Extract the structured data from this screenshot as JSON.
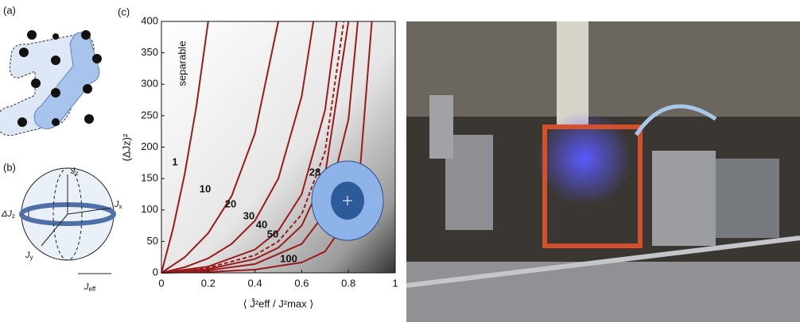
{
  "panel_labels": [
    "(a)",
    "(b)"
  ],
  "sphere": {
    "jz": {
      "base": "J",
      "sub": "z"
    },
    "jx": {
      "base": "J",
      "sub": "x"
    },
    "jy": {
      "base": "J",
      "sub": "y"
    },
    "djz": {
      "base": "ΔJ",
      "sub": "z"
    },
    "jeff": {
      "base": "J",
      "sub": "eff"
    }
  },
  "chart_data": {
    "type": "line",
    "panel_label": "(c)",
    "annotation": "separable",
    "x_label": "⟨ Ĵ²eff / J²max ⟩",
    "y_label": "(ΔJz)²",
    "xlim": [
      0,
      1
    ],
    "ylim": [
      0,
      400
    ],
    "xticks": [
      0,
      0.2,
      0.4,
      0.6,
      0.8,
      1
    ],
    "yticks": [
      0,
      50,
      100,
      150,
      200,
      250,
      300,
      350,
      400
    ],
    "series": [
      {
        "name": "1",
        "color": "#9b1b1b",
        "x": [
          0,
          0.05,
          0.1,
          0.15,
          0.2
        ],
        "values": [
          0,
          71,
          158,
          266,
          400
        ]
      },
      {
        "name": "10",
        "color": "#9b1b1b",
        "x": [
          0,
          0.1,
          0.2,
          0.3,
          0.4,
          0.5
        ],
        "values": [
          0,
          25,
          63,
          122,
          222,
          400
        ]
      },
      {
        "name": "20",
        "color": "#9b1b1b",
        "x": [
          0,
          0.1,
          0.2,
          0.3,
          0.4,
          0.5,
          0.6,
          0.65
        ],
        "values": [
          0,
          9,
          23,
          46,
          83,
          150,
          281,
          400
        ]
      },
      {
        "name": "30",
        "color": "#9b1b1b",
        "x": [
          0,
          0.2,
          0.4,
          0.5,
          0.6,
          0.7,
          0.75
        ],
        "values": [
          0,
          10,
          37,
          67,
          125,
          259,
          400
        ]
      },
      {
        "name": "28",
        "color": "#9b1b1b",
        "dashed": true,
        "x": [
          0,
          0.2,
          0.4,
          0.5,
          0.6,
          0.7,
          0.78
        ],
        "values": [
          0,
          8,
          28,
          50,
          93,
          193,
          400
        ]
      },
      {
        "name": "40",
        "color": "#9b1b1b",
        "x": [
          0,
          0.2,
          0.4,
          0.5,
          0.6,
          0.7,
          0.8
        ],
        "values": [
          0,
          6,
          22,
          40,
          75,
          156,
          400
        ]
      },
      {
        "name": "50",
        "color": "#9b1b1b",
        "x": [
          0,
          0.2,
          0.4,
          0.6,
          0.7,
          0.8,
          0.84
        ],
        "values": [
          0,
          4,
          14,
          46,
          95,
          244,
          400
        ]
      },
      {
        "name": "100",
        "color": "#9b1b1b",
        "x": [
          0,
          0.2,
          0.4,
          0.6,
          0.7,
          0.8,
          0.85,
          0.9
        ],
        "values": [
          0,
          1.4,
          5,
          16.5,
          34,
          88,
          166,
          400
        ]
      }
    ]
  }
}
